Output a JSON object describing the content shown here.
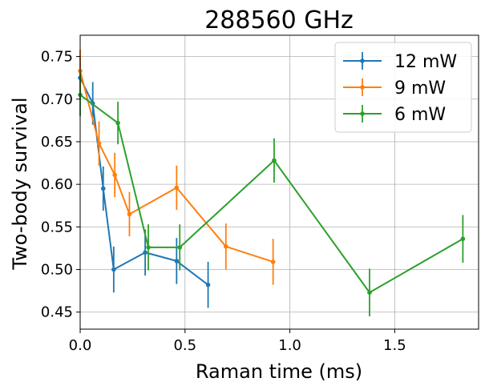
{
  "chart_data": {
    "type": "line",
    "title": "288560 GHz",
    "xlabel": "Raman time (ms)",
    "ylabel": "Two-body survival",
    "xlim": [
      0.0,
      1.9
    ],
    "ylim": [
      0.43,
      0.775
    ],
    "xticks": [
      0.0,
      0.5,
      1.0,
      1.5
    ],
    "xtick_labels": [
      "0.0",
      "0.5",
      "1.0",
      "1.5"
    ],
    "yticks": [
      0.45,
      0.5,
      0.55,
      0.6,
      0.65,
      0.7,
      0.75
    ],
    "ytick_labels": [
      "0.45",
      "0.50",
      "0.55",
      "0.60",
      "0.65",
      "0.70",
      "0.75"
    ],
    "grid": true,
    "legend_position": "top-right",
    "error_bars": true,
    "series": [
      {
        "name": "12 mW",
        "color": "#1f77b4",
        "x": [
          0.0,
          0.06,
          0.11,
          0.16,
          0.31,
          0.46,
          0.61
        ],
        "y": [
          0.725,
          0.695,
          0.595,
          0.5,
          0.52,
          0.51,
          0.482
        ],
        "yerr": [
          0.025,
          0.025,
          0.026,
          0.027,
          0.027,
          0.027,
          0.027
        ]
      },
      {
        "name": "9 mW",
        "color": "#ff7f0e",
        "x": [
          0.0,
          0.09,
          0.165,
          0.235,
          0.46,
          0.695,
          0.92
        ],
        "y": [
          0.733,
          0.648,
          0.611,
          0.565,
          0.596,
          0.527,
          0.509
        ],
        "yerr": [
          0.025,
          0.026,
          0.026,
          0.026,
          0.026,
          0.027,
          0.027
        ]
      },
      {
        "name": "6 mW",
        "color": "#2ca02c",
        "x": [
          0.0,
          0.18,
          0.325,
          0.475,
          0.925,
          1.38,
          1.825
        ],
        "y": [
          0.705,
          0.672,
          0.526,
          0.526,
          0.628,
          0.473,
          0.536
        ],
        "yerr": [
          0.025,
          0.025,
          0.027,
          0.027,
          0.026,
          0.028,
          0.028
        ]
      }
    ]
  }
}
